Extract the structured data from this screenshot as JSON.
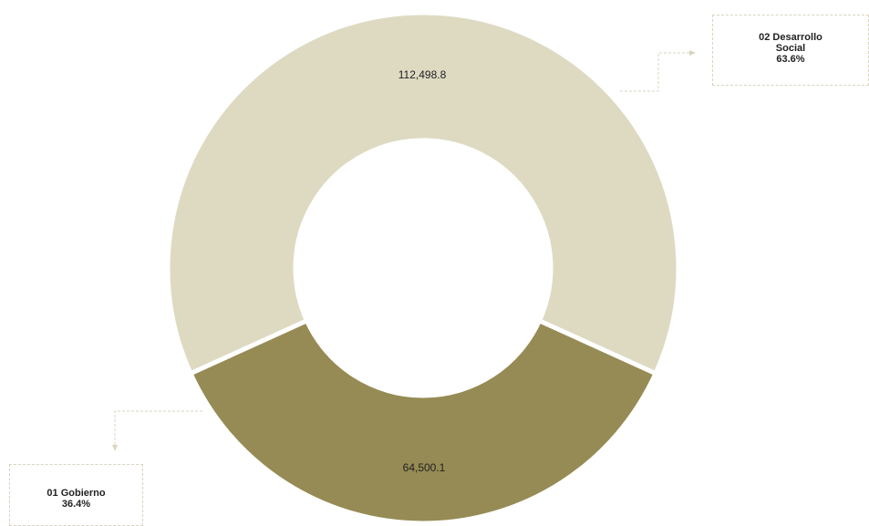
{
  "chart_data": {
    "type": "pie",
    "donut": true,
    "slices": [
      {
        "label": "02 Desarrollo Social",
        "value": 112498.8,
        "value_text": "112,498.8",
        "percent_text": "63.6%",
        "color": "#dedac2"
      },
      {
        "label": "01 Gobierno",
        "value": 64500.1,
        "value_text": "64,500.1",
        "percent_text": "36.4%",
        "color": "#968b54"
      }
    ]
  },
  "callouts": {
    "social": {
      "line1": "02 Desarrollo",
      "line2": "Social",
      "percent": "63.6%"
    },
    "gobierno": {
      "line1": "01 Gobierno",
      "percent": "36.4%"
    }
  }
}
